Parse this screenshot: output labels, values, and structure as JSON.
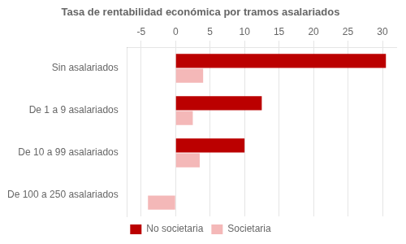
{
  "chart_data": {
    "type": "bar",
    "orientation": "horizontal",
    "title": "Tasa de rentabilidad económica por tramos asalariados",
    "categories": [
      "Sin asalariados",
      "De 1 a 9 asalariados",
      "De 10 a 99 asalariados",
      "De 100 a 250 asalariados"
    ],
    "series": [
      {
        "name": "No societaria",
        "color": "#bb0000",
        "values": [
          30.5,
          12.5,
          10.0,
          0.0
        ]
      },
      {
        "name": "Societaria",
        "color": "#f4b8b8",
        "values": [
          4.0,
          2.5,
          3.5,
          -4.0
        ]
      }
    ],
    "xlim": [
      -7,
      32
    ],
    "xticks": [
      -5,
      0,
      5,
      10,
      15,
      20,
      25,
      30
    ],
    "grid": true,
    "legend": "bottom"
  }
}
